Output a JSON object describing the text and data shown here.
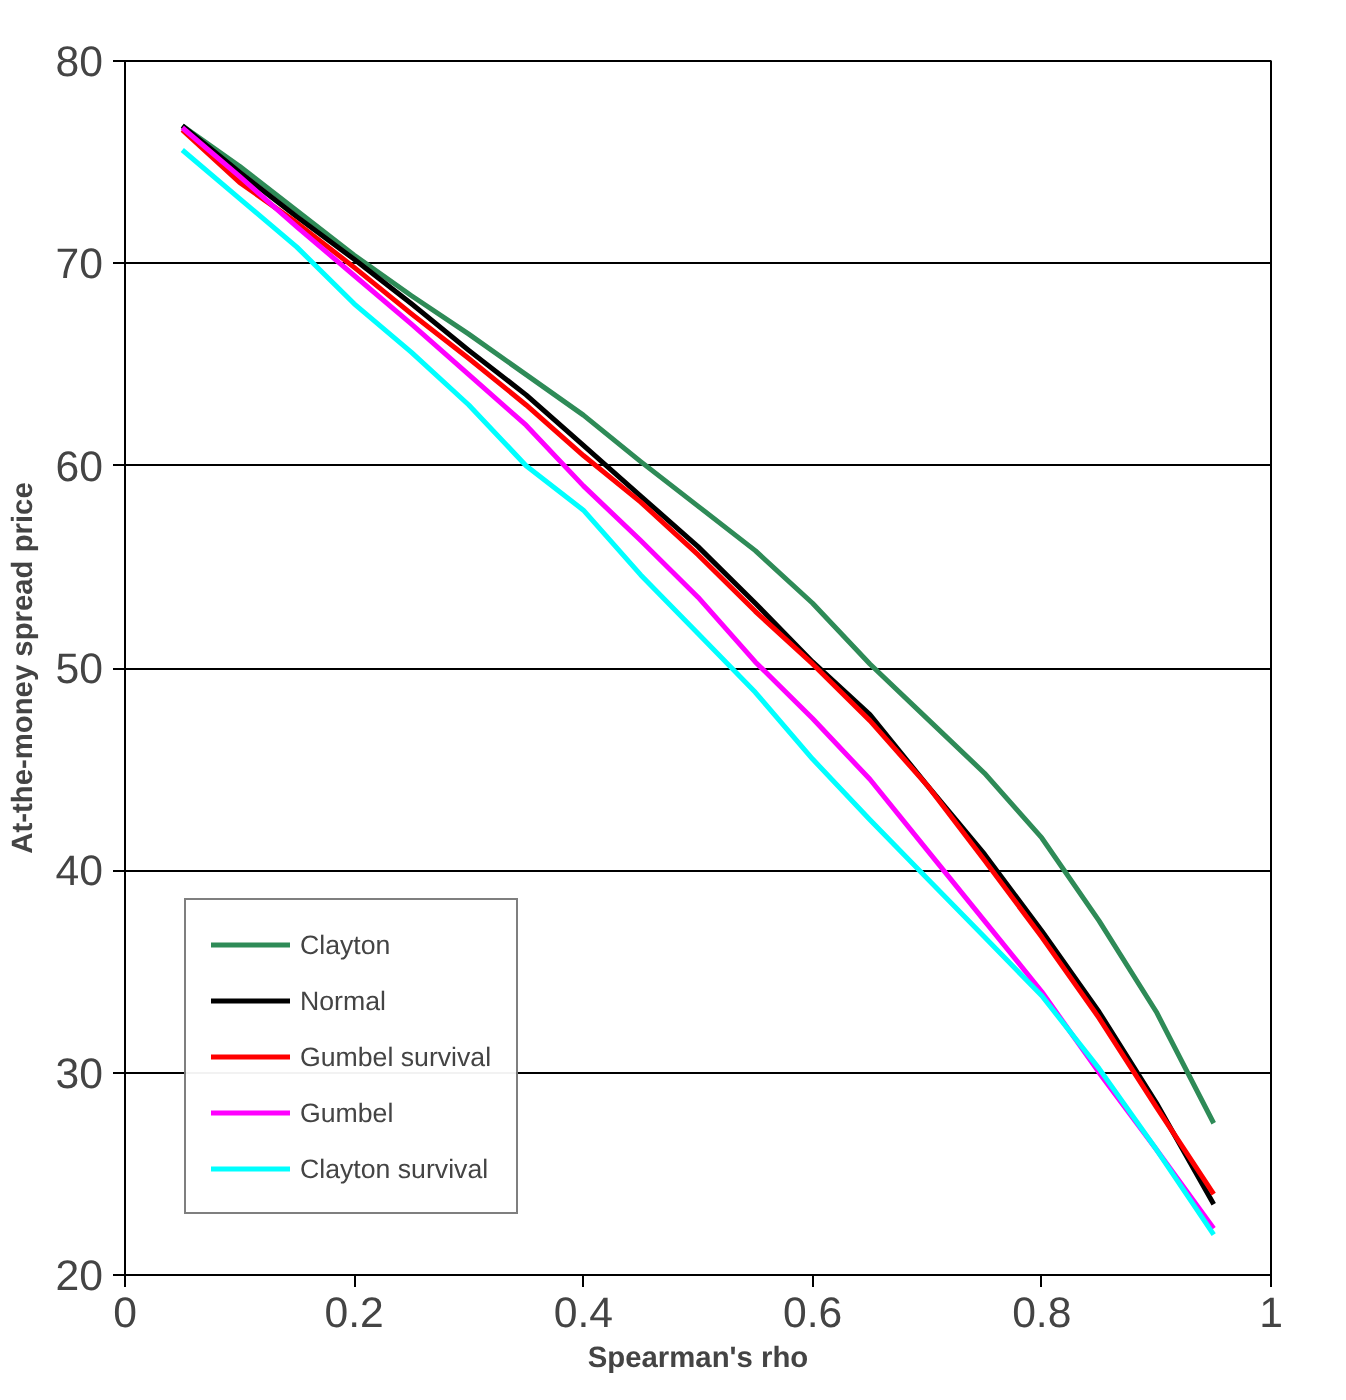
{
  "chart_data": {
    "type": "line",
    "xlabel": "Spearman's rho",
    "ylabel": "At-the-money spread price",
    "x": [
      0.05,
      0.1,
      0.15,
      0.2,
      0.25,
      0.3,
      0.35,
      0.4,
      0.45,
      0.5,
      0.55,
      0.6,
      0.65,
      0.7,
      0.75,
      0.8,
      0.85,
      0.9,
      0.95
    ],
    "series": [
      {
        "name": "Clayton",
        "color": "#2e8b57",
        "values": [
          76.8,
          74.8,
          72.6,
          70.4,
          68.4,
          66.5,
          64.5,
          62.5,
          60.2,
          58.0,
          55.8,
          53.2,
          50.2,
          47.5,
          44.8,
          41.6,
          37.5,
          33.0,
          27.5
        ]
      },
      {
        "name": "Normal",
        "color": "#000000",
        "values": [
          76.8,
          74.5,
          72.3,
          70.2,
          68.0,
          65.7,
          63.5,
          61.0,
          58.5,
          56.0,
          53.2,
          50.3,
          47.7,
          44.2,
          40.8,
          37.0,
          33.0,
          28.5,
          23.5
        ]
      },
      {
        "name": "Gumbel survival",
        "color": "#ff0000",
        "values": [
          76.6,
          74.0,
          72.0,
          69.8,
          67.5,
          65.3,
          63.0,
          60.5,
          58.2,
          55.6,
          52.8,
          50.2,
          47.4,
          44.2,
          40.5,
          36.7,
          32.7,
          28.3,
          24.0
        ]
      },
      {
        "name": "Gumbel",
        "color": "#ff00ff",
        "values": [
          76.7,
          74.3,
          71.8,
          69.4,
          67.0,
          64.5,
          62.0,
          59.0,
          56.3,
          53.5,
          50.3,
          47.5,
          44.5,
          41.0,
          37.5,
          34.0,
          30.0,
          26.2,
          22.3
        ]
      },
      {
        "name": "Clayton survival",
        "color": "#00ffff",
        "values": [
          75.6,
          73.2,
          70.8,
          68.0,
          65.6,
          63.0,
          60.0,
          57.8,
          54.6,
          51.7,
          48.8,
          45.5,
          42.5,
          39.6,
          36.7,
          33.8,
          30.2,
          26.2,
          22.0
        ]
      }
    ],
    "xlim": [
      0,
      1
    ],
    "xticks": [
      0,
      0.2,
      0.4,
      0.6,
      0.8,
      1
    ],
    "ylim": [
      20,
      80
    ],
    "yticks": [
      20,
      30,
      40,
      50,
      60,
      70,
      80
    ],
    "grid": "y",
    "legend": "bottom left",
    "marker": "none",
    "line_style": "solid"
  }
}
